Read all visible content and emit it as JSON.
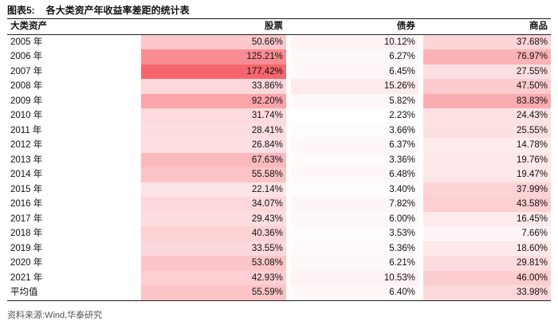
{
  "title": {
    "num": "图表5:",
    "text": "各大类资产年收益率差距的统计表"
  },
  "headers": {
    "category": "大类资产",
    "stocks": "股票",
    "bonds": "债券",
    "commodities": "商品"
  },
  "color_scale": {
    "low": "#ffffff",
    "high": "#f7666e"
  },
  "rows": [
    {
      "label": "2005 年",
      "stocks": "50.66%",
      "bonds": "10.12%",
      "commodities": "37.68%"
    },
    {
      "label": "2006 年",
      "stocks": "125.21%",
      "bonds": "6.27%",
      "commodities": "76.97%"
    },
    {
      "label": "2007 年",
      "stocks": "177.42%",
      "bonds": "6.45%",
      "commodities": "27.55%"
    },
    {
      "label": "2008 年",
      "stocks": "33.86%",
      "bonds": "15.26%",
      "commodities": "47.50%"
    },
    {
      "label": "2009 年",
      "stocks": "92.20%",
      "bonds": "5.82%",
      "commodities": "83.83%"
    },
    {
      "label": "2010 年",
      "stocks": "31.74%",
      "bonds": "2.23%",
      "commodities": "24.43%"
    },
    {
      "label": "2011 年",
      "stocks": "28.41%",
      "bonds": "3.66%",
      "commodities": "25.55%"
    },
    {
      "label": "2012 年",
      "stocks": "26.84%",
      "bonds": "6.37%",
      "commodities": "14.78%"
    },
    {
      "label": "2013 年",
      "stocks": "67.63%",
      "bonds": "3.36%",
      "commodities": "19.76%"
    },
    {
      "label": "2014 年",
      "stocks": "55.58%",
      "bonds": "6.48%",
      "commodities": "19.47%"
    },
    {
      "label": "2015 年",
      "stocks": "22.14%",
      "bonds": "3.40%",
      "commodities": "37.99%"
    },
    {
      "label": "2016 年",
      "stocks": "34.07%",
      "bonds": "7.82%",
      "commodities": "43.58%"
    },
    {
      "label": "2017 年",
      "stocks": "29.43%",
      "bonds": "6.00%",
      "commodities": "16.45%"
    },
    {
      "label": "2018 年",
      "stocks": "40.36%",
      "bonds": "3.53%",
      "commodities": "7.66%"
    },
    {
      "label": "2019 年",
      "stocks": "33.55%",
      "bonds": "5.36%",
      "commodities": "18.60%"
    },
    {
      "label": "2020 年",
      "stocks": "53.08%",
      "bonds": "6.21%",
      "commodities": "29.81%"
    },
    {
      "label": "2021 年",
      "stocks": "42.93%",
      "bonds": "10.53%",
      "commodities": "46.00%"
    },
    {
      "label": "平均值",
      "stocks": "55.59%",
      "bonds": "6.40%",
      "commodities": "33.98%"
    }
  ],
  "source": "资料来源:Wind,华泰研究"
}
